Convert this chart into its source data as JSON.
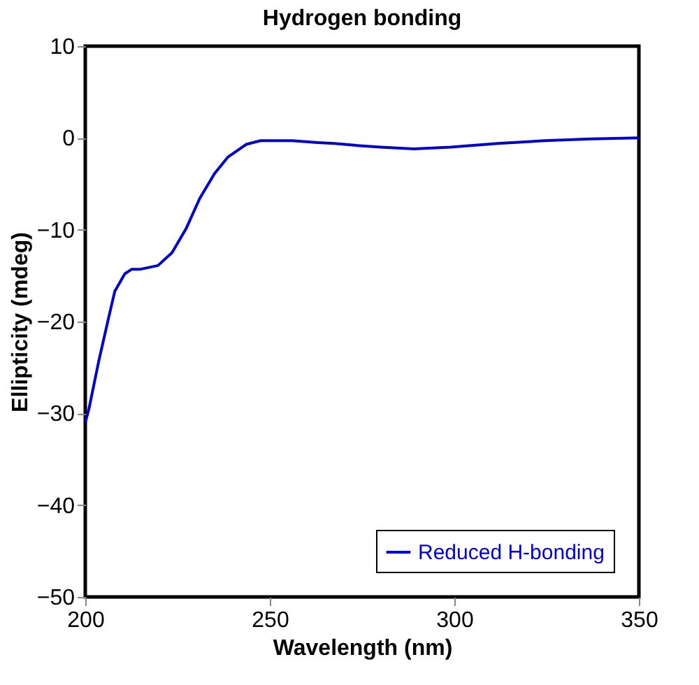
{
  "chart_data": {
    "type": "line",
    "title": "Hydrogen bonding",
    "xlabel": "Wavelength (nm)",
    "ylabel": "Ellipticity (mdeg)",
    "x": [
      200,
      201,
      203.6,
      206.2,
      208,
      210.7,
      212.6,
      215,
      219.7,
      223.5,
      227.3,
      231,
      235,
      238.6,
      243.6,
      247.5,
      252,
      256,
      263,
      267.5,
      273,
      280,
      289,
      299,
      311.7,
      324.4,
      337,
      350
    ],
    "series": [
      {
        "name": "Reduced H-bonding",
        "color": "#0000cc",
        "values": [
          -31,
          -29.5,
          -24.4,
          -19.8,
          -16.7,
          -14.8,
          -14.3,
          -14.3,
          -13.9,
          -12.5,
          -9.9,
          -6.6,
          -3.9,
          -2.1,
          -0.7,
          -0.3,
          -0.3,
          -0.3,
          -0.5,
          -0.6,
          -0.8,
          -1,
          -1.2,
          -1,
          -0.6,
          -0.3,
          -0.1,
          0
        ]
      }
    ],
    "xlim": [
      200,
      350
    ],
    "xticks": [
      200,
      250,
      300,
      350
    ],
    "ylim": [
      -50,
      10
    ],
    "yticks": [
      -50,
      -40,
      -30,
      -20,
      -10,
      0,
      10
    ],
    "grid": false,
    "legend": "bottom right",
    "marker": "none",
    "line_style": "solid"
  }
}
